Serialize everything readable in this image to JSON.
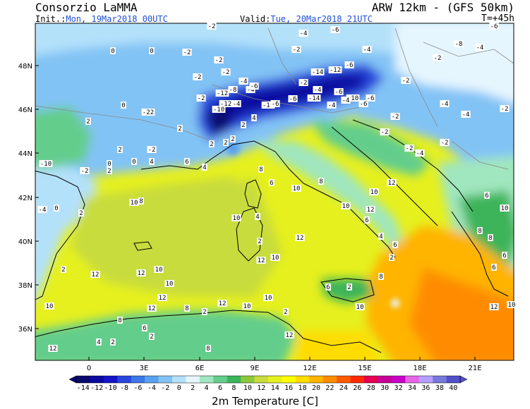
{
  "header": {
    "org": "Consorzio LaMMA",
    "model": "ARW 12km - (GFS 50km)",
    "init_label": "Init.:",
    "init_value": "Mon, 19Mar2018 00UTC",
    "valid_label": "Valid:",
    "valid_value": "Tue, 20Mar2018 21UTC",
    "forecast_step": "T=+45h"
  },
  "map": {
    "lat_labels": [
      "48N",
      "46N",
      "44N",
      "42N",
      "40N",
      "38N",
      "36N"
    ],
    "lon_labels": [
      "0",
      "3E",
      "6E",
      "9E",
      "12E",
      "15E",
      "18E",
      "21E"
    ]
  },
  "colorbar": {
    "title": "2m Temperature [C]",
    "ticks": [
      "-14",
      "-12",
      "-10",
      "-8",
      "-6",
      "-4",
      "-2",
      "0",
      "2",
      "4",
      "6",
      "8",
      "10",
      "12",
      "14",
      "16",
      "18",
      "20",
      "22",
      "24",
      "26",
      "28",
      "30",
      "32",
      "34",
      "36",
      "38",
      "40"
    ],
    "colors": [
      "#08086e",
      "#0a0aa0",
      "#1414c8",
      "#2846dc",
      "#3c78e6",
      "#5aa0f0",
      "#82c3f5",
      "#b4e1fa",
      "#e6f6ff",
      "#a0e6be",
      "#64cd8c",
      "#3cb45a",
      "#8cc83c",
      "#c8dc3c",
      "#e6f01e",
      "#ffff00",
      "#ffdc00",
      "#ffb400",
      "#ff8c00",
      "#ff5a00",
      "#ff2800",
      "#e60050",
      "#c80096",
      "#c800c8",
      "#e664e6",
      "#b4a0ff",
      "#7878dc",
      "#5050c8"
    ]
  },
  "contour_labels": [
    "-2",
    "-4",
    "-6",
    "-8",
    "-10",
    "-12",
    "-14",
    "-22",
    "0",
    "2",
    "4",
    "6",
    "8",
    "10",
    "12"
  ]
}
